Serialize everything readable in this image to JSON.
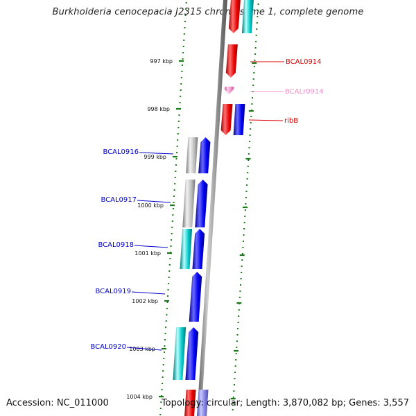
{
  "title": "Burkholderia cenocepacia J2315 chromosome 1, complete genome",
  "footer": {
    "accession": "Accession: NC_011000",
    "summary": "Topology: circular; Length: 3,870,082 bp; Genes: 3,557"
  },
  "ruler": [
    {
      "label": "997 kbp"
    },
    {
      "label": "998 kbp"
    },
    {
      "label": "999 kbp"
    },
    {
      "label": "1000 kbp"
    },
    {
      "label": "1001 kbp"
    },
    {
      "label": "1002 kbp"
    },
    {
      "label": "1003 kbp"
    },
    {
      "label": "1004 kbp"
    }
  ],
  "genes": [
    {
      "name": "BCAL0914",
      "color": "#dd0000"
    },
    {
      "name": "BCALr0914",
      "color": "#f090c8"
    },
    {
      "name": "ribB",
      "color": "#dd0000"
    },
    {
      "name": "BCAL0916",
      "color": "#0000cc"
    },
    {
      "name": "BCAL0917",
      "color": "#0000cc"
    },
    {
      "name": "BCAL0918",
      "color": "#0000cc"
    },
    {
      "name": "BCAL0919",
      "color": "#0000cc"
    },
    {
      "name": "BCAL0920",
      "color": "#0000cc"
    }
  ],
  "colors": {
    "backbone": "#888888",
    "tick": "#1a7a1a",
    "forward_gene": "#0000ee",
    "reverse_gene": "#ee0000",
    "cog_cyan": "#00bcbc",
    "cog_gray": "#b8b8b8",
    "rna": "#f090c8"
  }
}
